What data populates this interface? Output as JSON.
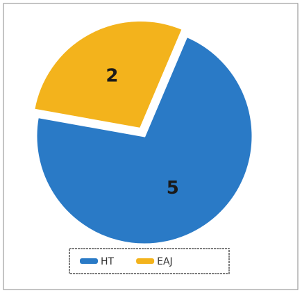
{
  "chart_data": {
    "type": "pie",
    "categories": [
      "HT",
      "EAJ"
    ],
    "values": [
      5,
      2
    ],
    "colors": [
      "#2a7ac6",
      "#f3b31c"
    ],
    "legend": "bottom"
  }
}
